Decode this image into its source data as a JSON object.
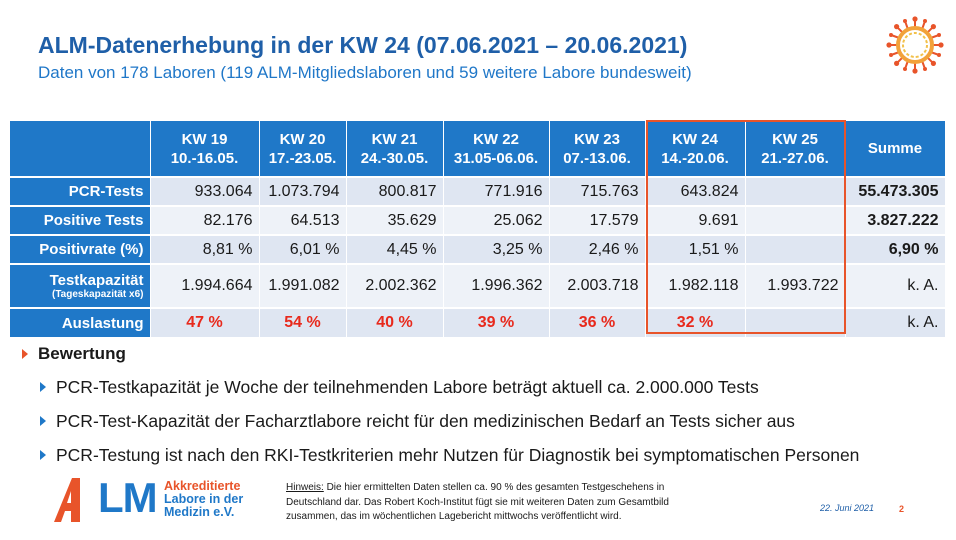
{
  "header": {
    "title": "ALM-Datenerhebung in der KW 24 (07.06.2021 – 20.06.2021)",
    "subtitle": "Daten von 178 Laboren (119 ALM-Mitgliedslaboren und 59 weitere Labore bundesweit)"
  },
  "table": {
    "columns": [
      {
        "kw": "KW 19",
        "range": "10.-16.05."
      },
      {
        "kw": "KW 20",
        "range": "17.-23.05."
      },
      {
        "kw": "KW 21",
        "range": "24.-30.05."
      },
      {
        "kw": "KW 22",
        "range": "31.05-06.06."
      },
      {
        "kw": "KW 23",
        "range": "07.-13.06."
      },
      {
        "kw": "KW 24",
        "range": "14.-20.06."
      },
      {
        "kw": "KW 25",
        "range": "21.-27.06."
      }
    ],
    "summe_label": "Summe",
    "rows": [
      {
        "label": "PCR-Tests",
        "sublabel": "",
        "values": [
          "933.064",
          "1.073.794",
          "800.817",
          "771.916",
          "715.763",
          "643.824",
          ""
        ],
        "summe": "55.473.305"
      },
      {
        "label": "Positive Tests",
        "sublabel": "",
        "values": [
          "82.176",
          "64.513",
          "35.629",
          "25.062",
          "17.579",
          "9.691",
          ""
        ],
        "summe": "3.827.222"
      },
      {
        "label": "Positivrate (%)",
        "sublabel": "",
        "values": [
          "8,81 %",
          "6,01 %",
          "4,45 %",
          "3,25 %",
          "2,46 %",
          "1,51 %",
          ""
        ],
        "summe": "6,90 %"
      },
      {
        "label": "Testkapazität",
        "sublabel": "(Tageskapazität x6)",
        "values": [
          "1.994.664",
          "1.991.082",
          "2.002.362",
          "1.996.362",
          "2.003.718",
          "1.982.118",
          "1.993.722"
        ],
        "summe": "k. A."
      },
      {
        "label": "Auslastung",
        "sublabel": "",
        "values": [
          "47 %",
          "54 %",
          "40 %",
          "39 %",
          "36 %",
          "32 %",
          ""
        ],
        "summe": "k. A."
      }
    ]
  },
  "bewertung": {
    "heading": "Bewertung",
    "points": [
      "PCR-Testkapazität je Woche der teilnehmenden Labore beträgt aktuell ca. 2.000.000 Tests",
      "PCR-Test-Kapazität der Facharztlabore reicht für den medizinischen Bedarf an Tests sicher aus",
      "PCR-Testung ist nach den RKI-Testkriterien mehr Nutzen für Diagnostik bei symptomatischen Personen"
    ]
  },
  "footer": {
    "logo_letters": "LM",
    "logo_line1": "Akkreditierte",
    "logo_line2": "Labore in der",
    "logo_line3": "Medizin e.V.",
    "hinweis_label": "Hinweis:",
    "hinweis_line1": " Die hier ermittelten Daten stellen ca. 90 % des gesamten Testgeschehens in",
    "hinweis_line2": "Deutschland dar. Das Robert Koch-Institut fügt sie mit weiteren Daten zum Gesamtbild",
    "hinweis_line3": "zusammen, das im wöchentlichen Lagebericht mittwochs veröffentlicht wird.",
    "date": "22. Juni 2021",
    "page": "2"
  },
  "colors": {
    "header_blue": "#1f78c8",
    "title_blue": "#1f5fa8",
    "highlight_orange": "#e8542a",
    "percent_red": "#e8291c"
  },
  "icons": {
    "virus": "coronavirus-icon",
    "bullet": "triangle-bullet-icon"
  }
}
